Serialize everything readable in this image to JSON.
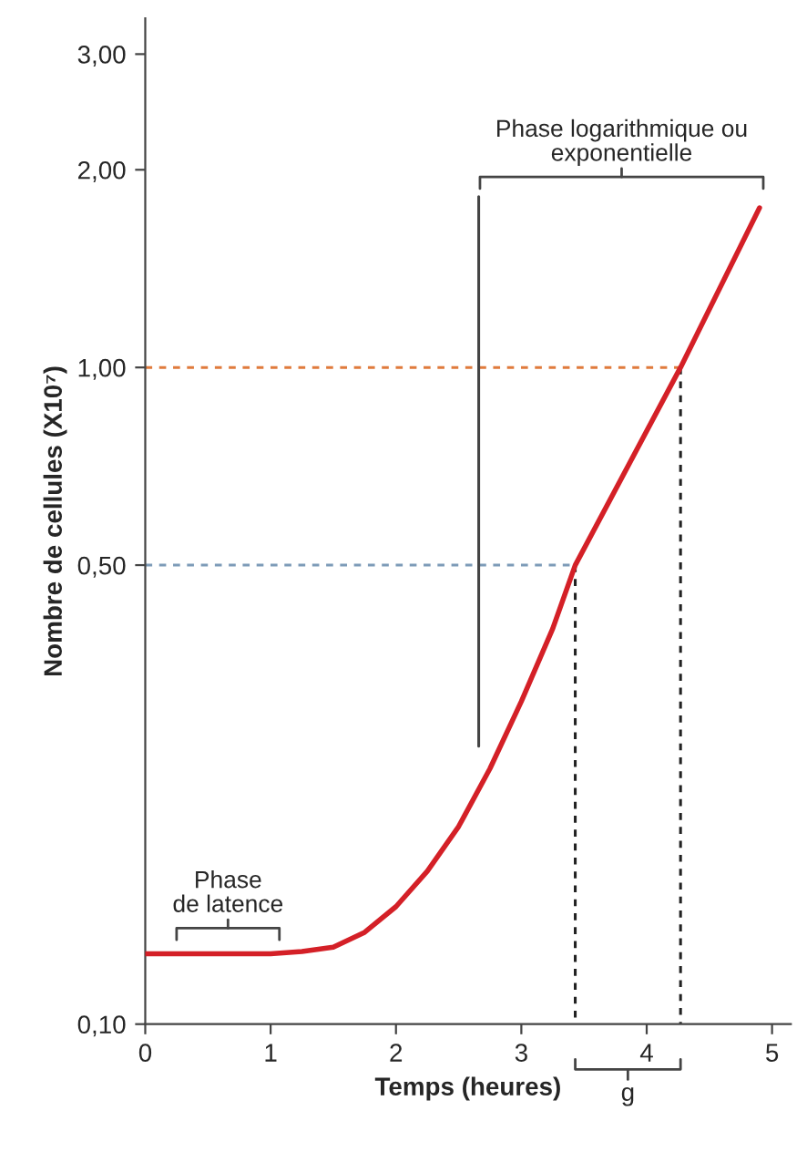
{
  "chart_data": {
    "type": "line",
    "xlabel": "Temps (heures)",
    "ylabel": "Nombre de cellules (X10⁷)",
    "x": [
      0,
      0.5,
      1,
      1.25,
      1.5,
      1.75,
      2,
      2.25,
      2.5,
      2.75,
      3,
      3.25,
      3.43,
      4.27,
      4.9
    ],
    "series": [
      {
        "color": "#d42027",
        "values": [
          0.128,
          0.128,
          0.128,
          0.129,
          0.131,
          0.138,
          0.151,
          0.171,
          0.2,
          0.245,
          0.31,
          0.4,
          0.5,
          1.0,
          1.75
        ]
      },
      {
        "color": "#e07b3c",
        "line_style": "dashed",
        "x": [
          0,
          4.27
        ],
        "values": [
          1.0,
          1.0
        ]
      },
      {
        "color": "#7d9bb8",
        "line_style": "dashed",
        "x": [
          0,
          3.43
        ],
        "values": [
          0.5,
          0.5
        ]
      },
      {
        "color": "#222222",
        "line_style": "dashed",
        "x": [
          4.27,
          4.27
        ],
        "values": [
          1.0,
          0.1
        ]
      },
      {
        "color": "#222222",
        "line_style": "dashed",
        "x": [
          3.43,
          3.43
        ],
        "values": [
          0.5,
          0.1
        ]
      },
      {
        "color": "#444444",
        "line_style": "solid",
        "x": [
          2.66,
          2.66
        ],
        "values": [
          1.82,
          0.265
        ]
      }
    ],
    "annotations": [
      "Phase logarithmique ou\nexponentielle",
      "Phase\nde latence",
      "g"
    ],
    "log": "y",
    "xlim": [
      0,
      5.15
    ],
    "ylim": [
      0.1,
      3.4
    ],
    "xticks": [
      0,
      1,
      2,
      3,
      4,
      5
    ],
    "yticks": [
      {
        "value": 0.1,
        "label": "0,10"
      },
      {
        "value": 0.5,
        "label": "0,50"
      },
      {
        "value": 1.0,
        "label": "1,00"
      },
      {
        "value": 2.0,
        "label": "2,00"
      },
      {
        "value": 3.0,
        "label": "3,00"
      }
    ],
    "grid": false,
    "legend": false
  }
}
